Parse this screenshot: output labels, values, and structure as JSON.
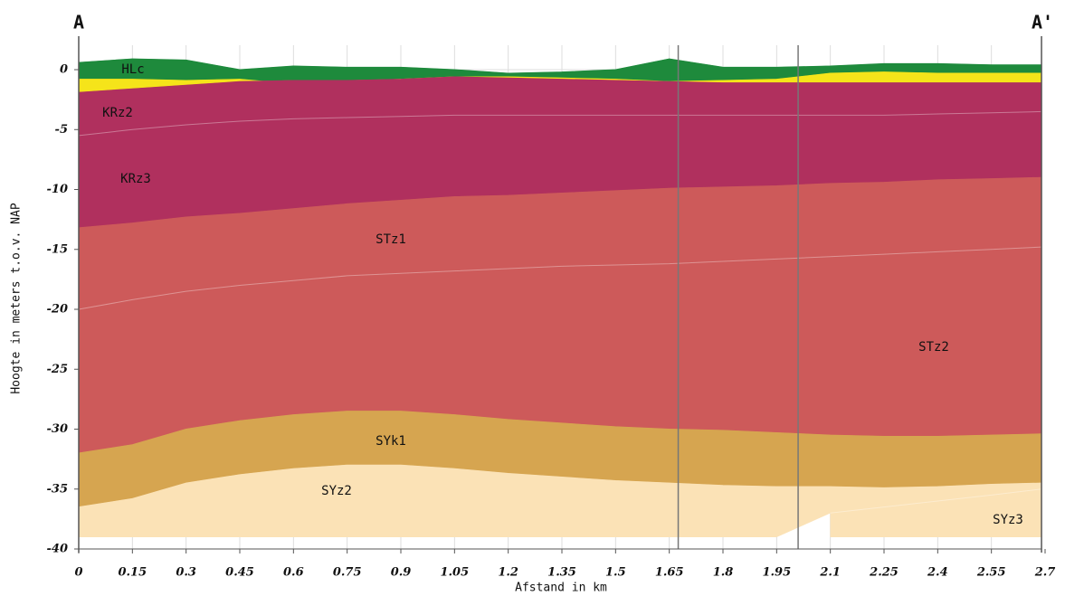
{
  "chart_data": {
    "type": "section",
    "section_labels": [
      "A",
      "A'"
    ],
    "x_label": "Afstand in km",
    "y_label": "Hoogte in meters t.o.v. NAP",
    "x": [
      0,
      0.15,
      0.3,
      0.45,
      0.6,
      0.75,
      0.9,
      1.05,
      1.2,
      1.35,
      1.5,
      1.65,
      1.8,
      1.95,
      2.1,
      2.25,
      2.4,
      2.55,
      2.69
    ],
    "bottom": -39,
    "series": [
      {
        "name": "HLc",
        "color": "#1e8a3c",
        "values": [
          0.6,
          0.9,
          0.8,
          0.0,
          0.3,
          0.2,
          0.2,
          0.0,
          -0.3,
          -0.2,
          0.0,
          0.9,
          0.2,
          0.2,
          0.3,
          0.5,
          0.5,
          0.4,
          0.4
        ]
      },
      {
        "name": null,
        "color": "#f5e41a",
        "values": [
          -0.8,
          -0.8,
          -0.9,
          -0.8,
          -1.2,
          -1.0,
          -0.8,
          -0.6,
          -0.6,
          -0.7,
          -0.8,
          -1.0,
          -0.9,
          -0.8,
          -0.3,
          -0.2,
          -0.3,
          -0.3,
          -0.3
        ]
      },
      {
        "name": "KRz2",
        "color": "#b0305e",
        "values": [
          -1.9,
          -1.6,
          -1.3,
          -1.0,
          -0.9,
          -0.9,
          -0.8,
          -0.6,
          -0.7,
          -0.8,
          -0.9,
          -1.0,
          -1.1,
          -1.1,
          -1.1,
          -1.1,
          -1.1,
          -1.1,
          -1.1
        ]
      },
      {
        "name": "KRz3",
        "color": "#b0305e",
        "values": [
          -5.5,
          -5.0,
          -4.6,
          -4.3,
          -4.1,
          -4.0,
          -3.9,
          -3.8,
          -3.8,
          -3.8,
          -3.8,
          -3.8,
          -3.8,
          -3.8,
          -3.8,
          -3.8,
          -3.7,
          -3.6,
          -3.5
        ]
      },
      {
        "name": "STz1",
        "color": "#cd5a5a",
        "values": [
          -13.2,
          -12.8,
          -12.3,
          -12.0,
          -11.6,
          -11.2,
          -10.9,
          -10.6,
          -10.5,
          -10.3,
          -10.1,
          -9.9,
          -9.8,
          -9.7,
          -9.5,
          -9.4,
          -9.2,
          -9.1,
          -9.0
        ]
      },
      {
        "name": "STz2",
        "color": "#cd5a5a",
        "values": [
          -20.0,
          -19.2,
          -18.5,
          -18.0,
          -17.6,
          -17.2,
          -17.0,
          -16.8,
          -16.6,
          -16.4,
          -16.3,
          -16.2,
          -16.0,
          -15.8,
          -15.6,
          -15.4,
          -15.2,
          -15.0,
          -14.8
        ]
      },
      {
        "name": "SYk1",
        "color": "#d6a550",
        "values": [
          -32.0,
          -31.3,
          -30.0,
          -29.3,
          -28.8,
          -28.5,
          -28.5,
          -28.8,
          -29.2,
          -29.5,
          -29.8,
          -30.0,
          -30.1,
          -30.3,
          -30.5,
          -30.6,
          -30.6,
          -30.5,
          -30.4
        ]
      },
      {
        "name": "SYz2",
        "color": "#fbe2b6",
        "values": [
          -36.5,
          -35.8,
          -34.5,
          -33.8,
          -33.3,
          -33.0,
          -33.0,
          -33.3,
          -33.7,
          -34.0,
          -34.3,
          -34.5,
          -34.7,
          -34.8,
          -34.8,
          -34.9,
          -34.8,
          -34.6,
          -34.5
        ]
      },
      {
        "name": "SYz3",
        "color": "#fbe2b6",
        "values": [
          null,
          null,
          null,
          null,
          null,
          null,
          null,
          null,
          null,
          null,
          null,
          null,
          null,
          null,
          -37.0,
          -36.5,
          -36.0,
          -35.5,
          -35.0
        ]
      }
    ],
    "vlines": [
      1.675,
      2.01
    ],
    "xlim": [
      0,
      2.7
    ],
    "ylim": [
      -40,
      1.7
    ],
    "xticks": [
      0,
      0.15,
      0.3,
      0.45,
      0.6,
      0.75,
      0.9,
      1.05,
      1.2,
      1.35,
      1.5,
      1.65,
      1.8,
      1.95,
      2.1,
      2.25,
      2.4,
      2.55,
      2.7
    ],
    "yticks": [
      0,
      -5,
      -10,
      -15,
      -20,
      -25,
      -30,
      -35,
      -40
    ],
    "grid": true
  }
}
